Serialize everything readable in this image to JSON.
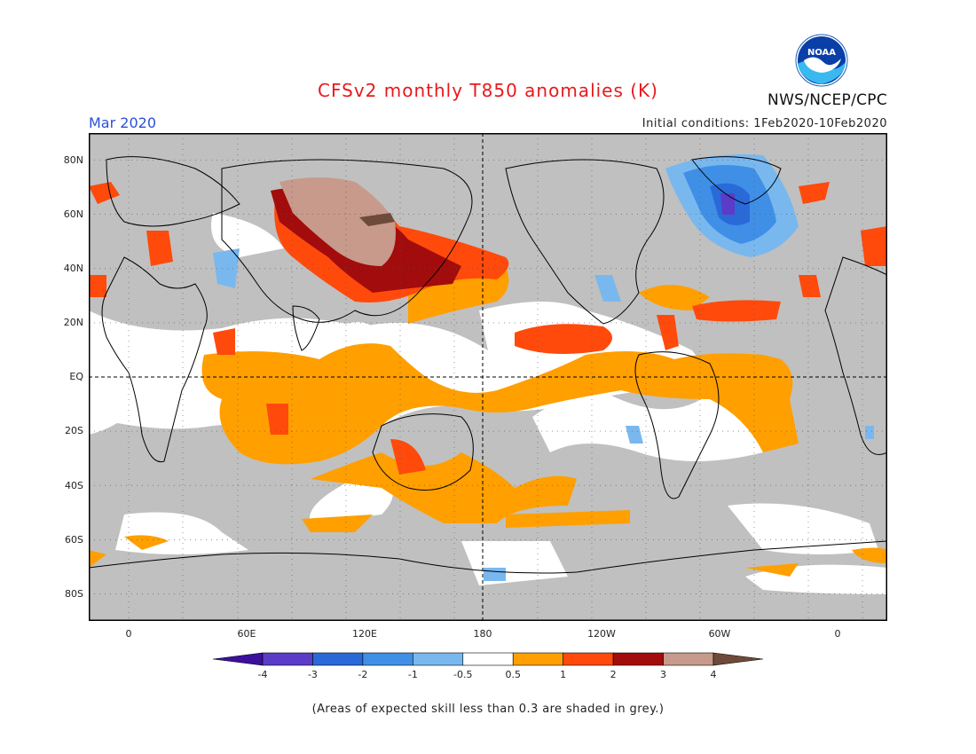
{
  "header": {
    "title": "CFSv2 monthly T850 anomalies (K)",
    "month": "Mar 2020",
    "agency": "NWS/NCEP/CPC",
    "initial_conditions": "Initial conditions: 1Feb2020-10Feb2020",
    "logo_text": "NOAA"
  },
  "map": {
    "projection": "cylindrical equidistant",
    "lon_ticks": [
      "0",
      "60E",
      "120E",
      "180",
      "120W",
      "60W",
      "0"
    ],
    "lat_ticks": [
      "80N",
      "60N",
      "40N",
      "20N",
      "EQ",
      "20S",
      "40S",
      "60S",
      "80S"
    ],
    "reference_lines": [
      "equator",
      "dateline"
    ],
    "colors": {
      "low_skill_grey": "#c0c0c0",
      "neutral": "#ffffff",
      "land_outline": "#000000"
    }
  },
  "colorbar": {
    "labels": [
      "-4",
      "-3",
      "-2",
      "-1",
      "-0.5",
      "0.5",
      "1",
      "2",
      "3",
      "4"
    ],
    "colors": [
      "#3d0f9e",
      "#5a3cc8",
      "#2a6ad8",
      "#3f8fe6",
      "#79b8ee",
      "#ffffff",
      "#ff9f00",
      "#ff4a0c",
      "#a30c0c",
      "#c79a8c",
      "#6e4a3a"
    ]
  },
  "footnote": "(Areas of expected skill less than 0.3 are shaded in grey.)"
}
